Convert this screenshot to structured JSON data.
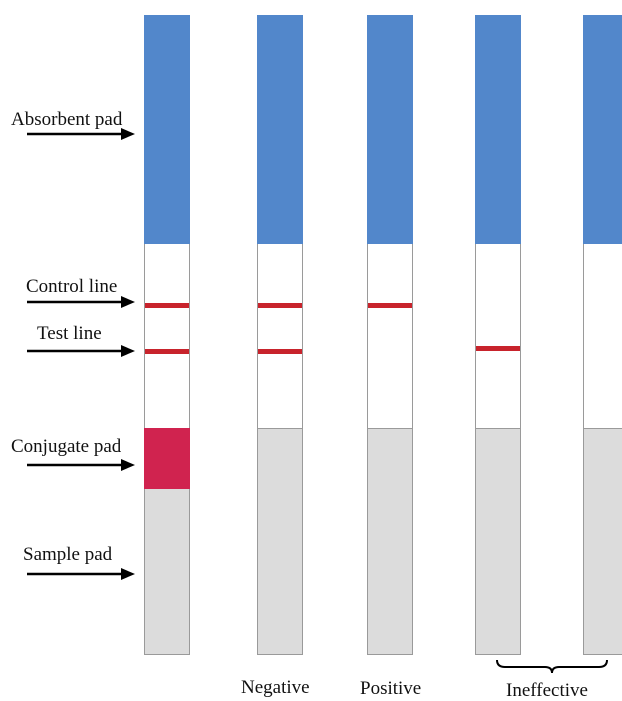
{
  "colors": {
    "absorbent": "#5287cb",
    "conjugate": "#d0234f",
    "sample": "#dcdcdc",
    "line": "#c8232c"
  },
  "labels": {
    "absorbent_pad": "Absorbent pad",
    "control_line": "Control line",
    "test_line": "Test line",
    "conjugate_pad": "Conjugate pad",
    "sample_pad": "Sample pad"
  },
  "results": {
    "negative": "Negative",
    "positive": "Positive",
    "ineffective": "Ineffective"
  },
  "strips": [
    {
      "id": "reference",
      "control_line": true,
      "test_line": true,
      "conjugate_colored": true
    },
    {
      "id": "negative",
      "control_line": true,
      "test_line": true,
      "conjugate_colored": false
    },
    {
      "id": "positive",
      "control_line": true,
      "test_line": false,
      "conjugate_colored": false
    },
    {
      "id": "ineffective-1",
      "control_line": false,
      "test_line": true,
      "conjugate_colored": false
    },
    {
      "id": "ineffective-2",
      "control_line": false,
      "test_line": false,
      "conjugate_colored": false
    }
  ]
}
